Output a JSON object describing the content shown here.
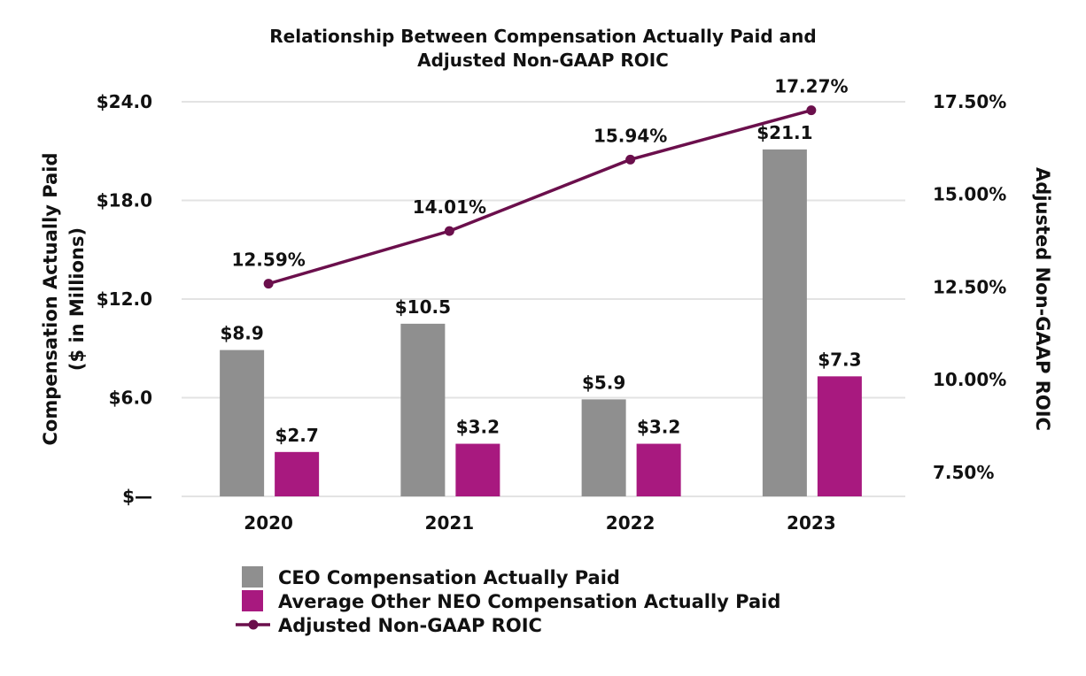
{
  "chart_data": {
    "type": "bar",
    "title": "Relationship Between Compensation Actually Paid and Adjusted Non-GAAP ROIC",
    "title_lines": [
      "Relationship Between Compensation Actually Paid and",
      "Adjusted Non-GAAP ROIC"
    ],
    "ylabel_lines": [
      "Compensation Actually Paid",
      "($ in Millions)"
    ],
    "y2label": "Adjusted Non-GAAP ROIC",
    "categories": [
      "2020",
      "2021",
      "2022",
      "2023"
    ],
    "ylim": [
      0,
      24
    ],
    "yticks": [
      0,
      6,
      12,
      18,
      24
    ],
    "ytick_labels": [
      "$—",
      "$6.0",
      "$12.0",
      "$18.0",
      "$24.0"
    ],
    "y2lim": [
      6.85,
      17.5
    ],
    "y2ticks": [
      7.5,
      10,
      12.5,
      15,
      17.5
    ],
    "y2tick_labels": [
      "7.50%",
      "10.00%",
      "12.50%",
      "15.00%",
      "17.50%"
    ],
    "grid": true,
    "legend_position": "bottom",
    "series": [
      {
        "name": "CEO Compensation Actually Paid",
        "kind": "bar",
        "axis": "left",
        "color": "#8f8f8f",
        "values": [
          8.9,
          10.5,
          5.9,
          21.1
        ],
        "labels": [
          "$8.9",
          "$10.5",
          "$5.9",
          "$21.1"
        ]
      },
      {
        "name": "Average Other NEO Compensation Actually Paid",
        "kind": "bar",
        "axis": "left",
        "color": "#a8197f",
        "values": [
          2.7,
          3.2,
          3.2,
          7.3
        ],
        "labels": [
          "$2.7",
          "$3.2",
          "$3.2",
          "$7.3"
        ]
      },
      {
        "name": "Adjusted Non-GAAP ROIC",
        "kind": "line",
        "axis": "right",
        "color": "#6b0f4c",
        "values": [
          12.59,
          14.01,
          15.94,
          17.27
        ],
        "labels": [
          "12.59%",
          "14.01%",
          "15.94%",
          "17.27%"
        ]
      }
    ]
  }
}
